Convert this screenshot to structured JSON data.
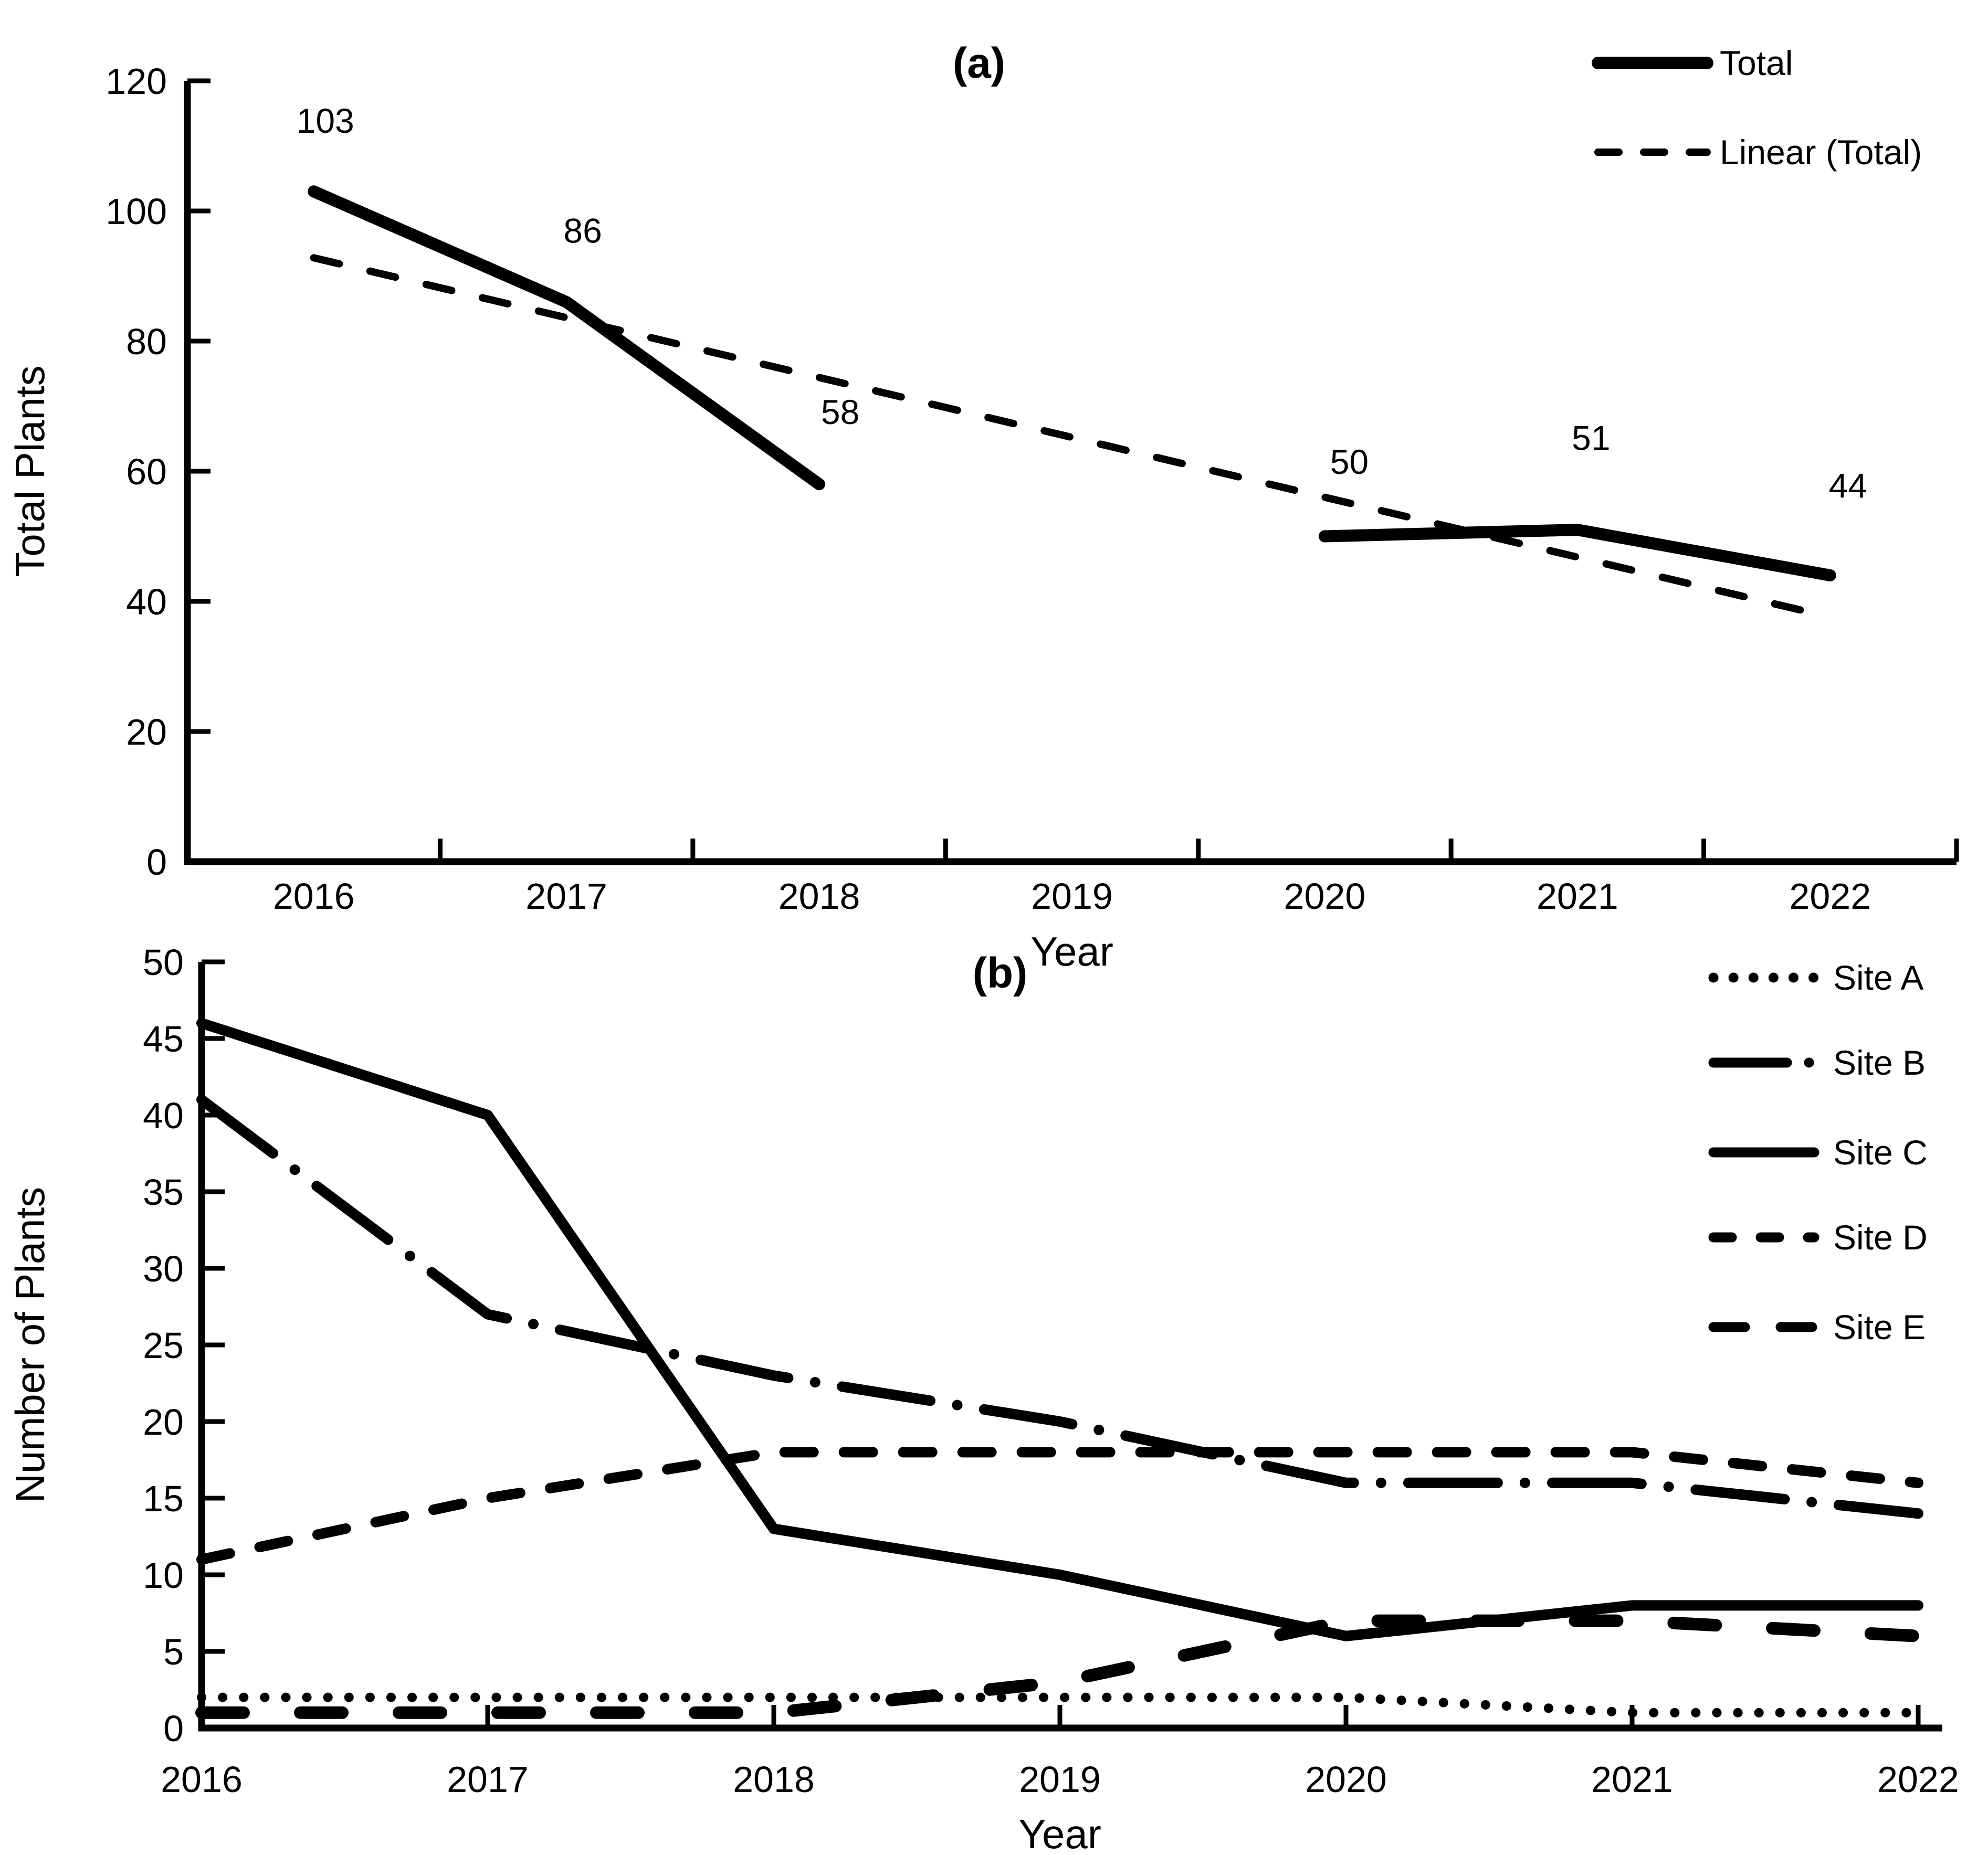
{
  "figure": {
    "background": "#ffffff",
    "ink_color": "#000000"
  },
  "chart_data": [
    {
      "id": "panel-a",
      "type": "line",
      "panel_label": "(a)",
      "xlabel": "Year",
      "ylabel": "Total Plants",
      "categories": [
        "2016",
        "2017",
        "2018",
        "2019",
        "2020",
        "2021",
        "2022"
      ],
      "ylim": [
        0,
        120
      ],
      "ytick_step": 20,
      "yticks": [
        "0",
        "20",
        "40",
        "60",
        "80",
        "100",
        "120"
      ],
      "grid": false,
      "legend_position": "top-right",
      "series": [
        {
          "name": "Total",
          "style": "total",
          "values": [
            103,
            86,
            58,
            null,
            50,
            51,
            44
          ],
          "data_labels": [
            "103",
            "86",
            "58",
            null,
            "50",
            "51",
            "44"
          ]
        },
        {
          "name": "Linear (Total)",
          "style": "trend",
          "values": [
            92.8,
            83.6,
            74.4,
            65.2,
            56.0,
            46.8,
            37.6
          ]
        }
      ]
    },
    {
      "id": "panel-b",
      "type": "line",
      "panel_label": "(b)",
      "xlabel": "Year",
      "ylabel": "Number of Plants",
      "categories": [
        "2016",
        "2017",
        "2018",
        "2019",
        "2020",
        "2021",
        "2022"
      ],
      "ylim": [
        0,
        50
      ],
      "ytick_step": 5,
      "yticks": [
        "0",
        "5",
        "10",
        "15",
        "20",
        "25",
        "30",
        "35",
        "40",
        "45",
        "50"
      ],
      "grid": false,
      "legend_position": "top-right",
      "series": [
        {
          "name": "Site A",
          "style": "dotted",
          "values": [
            2,
            2,
            2,
            2,
            2,
            1,
            1
          ]
        },
        {
          "name": "Site B",
          "style": "dashdot",
          "values": [
            41,
            27,
            23,
            20,
            16,
            16,
            14
          ]
        },
        {
          "name": "Site C",
          "style": "solid",
          "values": [
            46,
            40,
            13,
            10,
            6,
            8,
            8
          ]
        },
        {
          "name": "Site D",
          "style": "dash",
          "values": [
            11,
            15,
            18,
            18,
            18,
            18,
            16
          ]
        },
        {
          "name": "Site E",
          "style": "longdash",
          "values": [
            1,
            1,
            1,
            3,
            7,
            7,
            6
          ]
        }
      ]
    }
  ]
}
